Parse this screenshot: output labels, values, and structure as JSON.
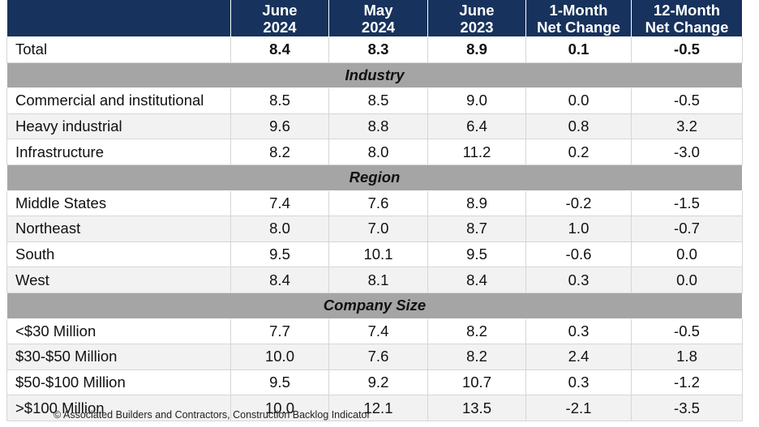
{
  "header": {
    "columns": [
      {
        "lines": [
          "June",
          "2024"
        ]
      },
      {
        "lines": [
          "May",
          "2024"
        ]
      },
      {
        "lines": [
          "June",
          "2023"
        ]
      },
      {
        "lines": [
          "1-Month",
          "Net Change"
        ]
      },
      {
        "lines": [
          "12-Month",
          "Net Change"
        ]
      }
    ]
  },
  "total": {
    "label": "Total",
    "values": [
      "8.4",
      "8.3",
      "8.9",
      "0.1",
      "-0.5"
    ]
  },
  "sections": [
    {
      "title": "Industry",
      "rows": [
        {
          "label": "Commercial and institutional",
          "values": [
            "8.5",
            "8.5",
            "9.0",
            "0.0",
            "-0.5"
          ]
        },
        {
          "label": "Heavy industrial",
          "values": [
            "9.6",
            "8.8",
            "6.4",
            "0.8",
            "3.2"
          ]
        },
        {
          "label": "Infrastructure",
          "values": [
            "8.2",
            "8.0",
            "11.2",
            "0.2",
            "-3.0"
          ]
        }
      ]
    },
    {
      "title": "Region",
      "rows": [
        {
          "label": "Middle States",
          "values": [
            "7.4",
            "7.6",
            "8.9",
            "-0.2",
            "-1.5"
          ]
        },
        {
          "label": "Northeast",
          "values": [
            "8.0",
            "7.0",
            "8.7",
            "1.0",
            "-0.7"
          ]
        },
        {
          "label": "South",
          "values": [
            "9.5",
            "10.1",
            "9.5",
            "-0.6",
            "0.0"
          ]
        },
        {
          "label": "West",
          "values": [
            "8.4",
            "8.1",
            "8.4",
            "0.3",
            "0.0"
          ]
        }
      ]
    },
    {
      "title": "Company Size",
      "rows": [
        {
          "label": "<$30 Million",
          "values": [
            "7.7",
            "7.4",
            "8.2",
            "0.3",
            "-0.5"
          ]
        },
        {
          "label": "$30-$50 Million",
          "values": [
            "10.0",
            "7.6",
            "8.2",
            "2.4",
            "1.8"
          ]
        },
        {
          "label": "$50-$100 Million",
          "values": [
            "9.5",
            "9.2",
            "10.7",
            "0.3",
            "-1.2"
          ]
        },
        {
          "label": ">$100 Million",
          "values": [
            "10.0",
            "12.1",
            "13.5",
            "-2.1",
            "-3.5"
          ]
        }
      ]
    }
  ],
  "footer": {
    "source": "© Associated Builders and Contractors, Construction Backlog Indicator"
  }
}
